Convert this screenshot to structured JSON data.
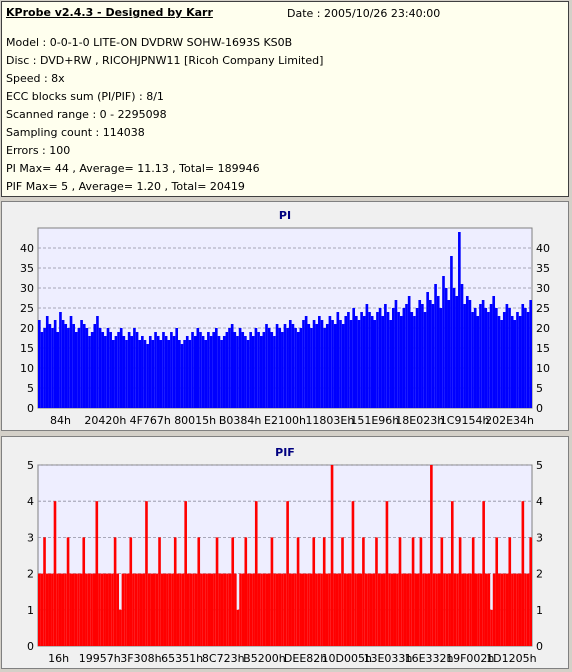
{
  "header": {
    "title": "KProbe v2.4.3 - Designed by Karr",
    "date": "Date : 2005/10/26 23:40:00",
    "lines": [
      "Model : 0-0-1-0 LITE-ON DVDRW SOHW-1693S KS0B",
      "Disc : DVD+RW , RICOHJPNW11 [Ricoh Company Limited]",
      "Speed : 8x",
      "ECC blocks sum (PI/PIF) : 8/1",
      "Scanned range : 0 - 2295098",
      "Sampling count : 114038",
      "Errors : 100",
      "PI Max= 44 , Average= 11.13 , Total= 189946",
      "PIF Max= 5 , Average= 1.20 , Total= 20419"
    ]
  },
  "chart_data": [
    {
      "type": "bar",
      "title": "PI",
      "ylim": [
        0,
        45
      ],
      "yticks": [
        0,
        5,
        10,
        15,
        20,
        25,
        30,
        35,
        40
      ],
      "xticks": [
        "84h",
        "20420h",
        "4F767h",
        "80015h",
        "B0384h",
        "E2100h",
        "11803Eh",
        "151E96h",
        "18E023h",
        "1C9154h",
        "202E34h"
      ],
      "grid": true,
      "color": "#0000ff",
      "series": [
        {
          "values": [
            22,
            19,
            20,
            23,
            21,
            20,
            22,
            19,
            24,
            22,
            21,
            20,
            23,
            21,
            19,
            20,
            22,
            21,
            20,
            18,
            19,
            21,
            23,
            20,
            19,
            18,
            20,
            19,
            17,
            18,
            19,
            20,
            18,
            17,
            19,
            18,
            20,
            19,
            17,
            18,
            17,
            16,
            18,
            17,
            19,
            18,
            17,
            19,
            18,
            17,
            19,
            18,
            20,
            17,
            16,
            17,
            18,
            17,
            19,
            18,
            20,
            19,
            18,
            17,
            19,
            18,
            19,
            20,
            18,
            17,
            18,
            19,
            20,
            21,
            19,
            18,
            20,
            19,
            18,
            17,
            19,
            18,
            20,
            19,
            18,
            19,
            21,
            20,
            19,
            18,
            21,
            20,
            19,
            21,
            20,
            22,
            21,
            20,
            19,
            20,
            22,
            23,
            21,
            20,
            22,
            21,
            23,
            22,
            20,
            21,
            23,
            22,
            21,
            24,
            22,
            21,
            23,
            24,
            22,
            25,
            23,
            22,
            24,
            23,
            26,
            24,
            23,
            22,
            24,
            25,
            23,
            26,
            24,
            22,
            25,
            27,
            24,
            23,
            25,
            26,
            28,
            24,
            23,
            25,
            27,
            26,
            24,
            29,
            27,
            26,
            31,
            28,
            25,
            33,
            30,
            27,
            38,
            30,
            28,
            44,
            31,
            26,
            28,
            27,
            24,
            25,
            23,
            26,
            27,
            25,
            24,
            26,
            28,
            25,
            23,
            22,
            24,
            26,
            25,
            23,
            22,
            24,
            23,
            26,
            25,
            24,
            27
          ]
        }
      ]
    },
    {
      "type": "bar",
      "title": "PIF",
      "ylim": [
        0,
        5
      ],
      "yticks": [
        0,
        1,
        2,
        3,
        4,
        5
      ],
      "xticks": [
        "16h",
        "19957h",
        "3F308h",
        "65351h",
        "8C723h",
        "B5200h",
        "DEE82h",
        "10D005h",
        "13E033h",
        "16E332h",
        "19F002h",
        "1D1205h"
      ],
      "grid": true,
      "color": "#ff0000",
      "series": [
        {
          "values": [
            2,
            2,
            3,
            2,
            2,
            2,
            4,
            2,
            2,
            2,
            2,
            3,
            2,
            2,
            2,
            2,
            2,
            3,
            2,
            2,
            2,
            2,
            4,
            2,
            2,
            2,
            2,
            2,
            2,
            3,
            2,
            1,
            2,
            2,
            2,
            3,
            2,
            2,
            2,
            2,
            2,
            4,
            2,
            2,
            2,
            2,
            3,
            2,
            2,
            2,
            2,
            2,
            3,
            2,
            2,
            2,
            4,
            2,
            2,
            2,
            2,
            3,
            2,
            2,
            2,
            2,
            2,
            2,
            3,
            2,
            2,
            2,
            2,
            2,
            3,
            2,
            1,
            2,
            2,
            3,
            2,
            2,
            2,
            4,
            2,
            2,
            2,
            2,
            2,
            3,
            2,
            2,
            2,
            2,
            2,
            4,
            2,
            2,
            2,
            3,
            2,
            2,
            2,
            2,
            2,
            3,
            2,
            2,
            2,
            3,
            2,
            2,
            5,
            2,
            2,
            2,
            3,
            2,
            2,
            2,
            4,
            2,
            2,
            2,
            3,
            2,
            2,
            2,
            2,
            3,
            2,
            2,
            2,
            4,
            2,
            2,
            2,
            2,
            3,
            2,
            2,
            2,
            2,
            3,
            2,
            2,
            3,
            2,
            2,
            2,
            5,
            2,
            2,
            2,
            3,
            2,
            2,
            2,
            4,
            2,
            2,
            3,
            2,
            2,
            2,
            2,
            3,
            2,
            2,
            2,
            4,
            2,
            2,
            1,
            2,
            3,
            2,
            2,
            2,
            2,
            3,
            2,
            2,
            2,
            2,
            4,
            2,
            2,
            3
          ]
        }
      ]
    }
  ]
}
